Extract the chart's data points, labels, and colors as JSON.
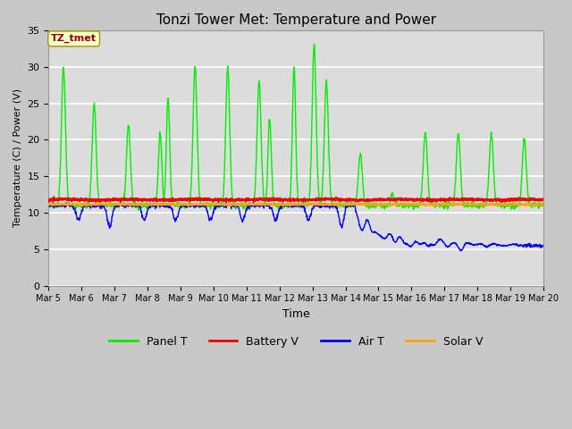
{
  "title": "Tonzi Tower Met: Temperature and Power",
  "xlabel": "Time",
  "ylabel": "Temperature (C) / Power (V)",
  "ylim": [
    0,
    35
  ],
  "yticks": [
    0,
    5,
    10,
    15,
    20,
    25,
    30,
    35
  ],
  "annotation_text": "TZ_tmet",
  "annotation_color": "#8B0000",
  "annotation_bg": "#FFFFCC",
  "colors": {
    "panel_t": "#00EE00",
    "battery_v": "#EE0000",
    "air_t": "#0000EE",
    "solar_v": "#FFA500"
  },
  "legend_labels": [
    "Panel T",
    "Battery V",
    "Air T",
    "Solar V"
  ],
  "n_days": 15,
  "fig_bg": "#C8C8C8",
  "plot_bg": "#DCDCDC",
  "grid_color": "#FFFFFF"
}
